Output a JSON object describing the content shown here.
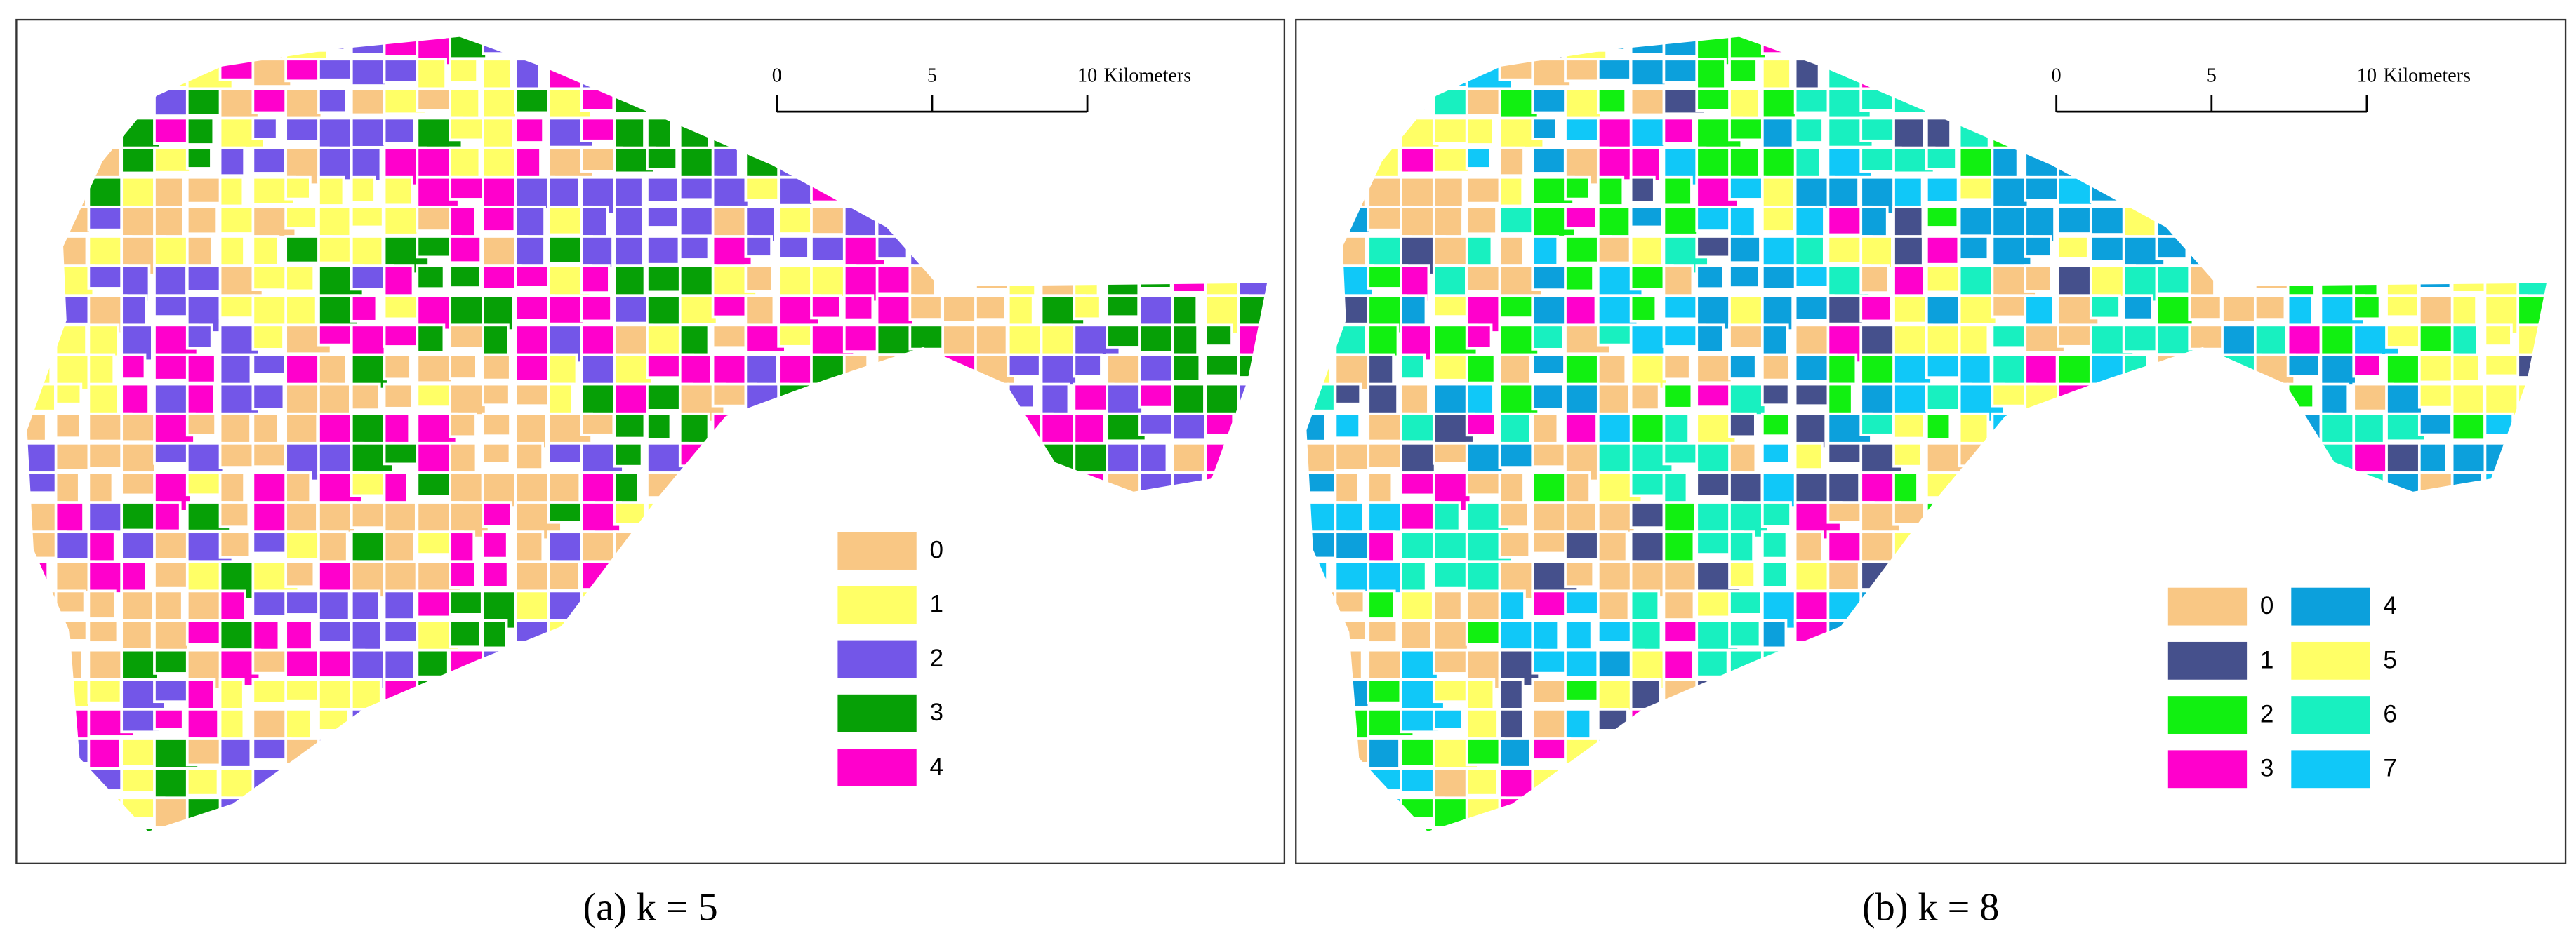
{
  "panels": [
    {
      "caption": "(a) k = 5",
      "scale_bar": {
        "ticks": [
          0,
          5,
          10
        ],
        "unit": "Kilometers"
      },
      "legend": [
        {
          "label": "0",
          "color": "#f9c784"
        },
        {
          "label": "1",
          "color": "#ffff66"
        },
        {
          "label": "2",
          "color": "#7356e8"
        },
        {
          "label": "3",
          "color": "#06a006"
        },
        {
          "label": "4",
          "color": "#ff00cc"
        }
      ]
    },
    {
      "caption": "(b) k = 8",
      "scale_bar": {
        "ticks": [
          0,
          5,
          10
        ],
        "unit": "Kilometers"
      },
      "legend": [
        {
          "label": "0",
          "color": "#f9c784"
        },
        {
          "label": "1",
          "color": "#45508c"
        },
        {
          "label": "2",
          "color": "#11f011"
        },
        {
          "label": "3",
          "color": "#ff00cc"
        },
        {
          "label": "4",
          "color": "#0ca0dc"
        },
        {
          "label": "5",
          "color": "#ffff66"
        },
        {
          "label": "6",
          "color": "#18f0c0"
        },
        {
          "label": "7",
          "color": "#10c8f8"
        }
      ]
    }
  ]
}
